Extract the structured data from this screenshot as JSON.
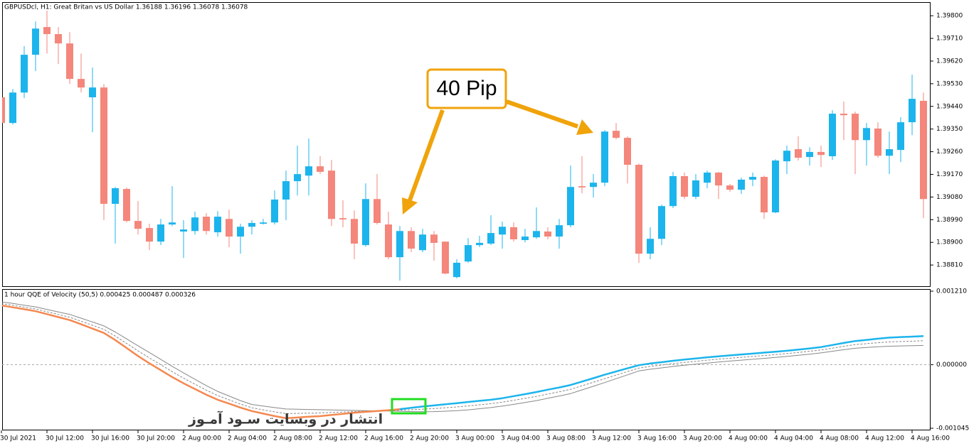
{
  "chart_data": [
    {
      "type": "candlestick",
      "title": "GBPUSDcl, H1:  Great Britan vs US Dollar  1.36188 1.36196 1.36078 1.36078",
      "annotation": "40 Pip",
      "watermark": "انتشار در وبسایت  سـود آمـوز",
      "up_color": "#1cb4ec",
      "down_color": "#f4867b",
      "grid": false,
      "categories": [
        "30 Jul 2021",
        null,
        null,
        null,
        "30 Jul 12:00",
        null,
        null,
        null,
        "30 Jul 16:00",
        null,
        null,
        null,
        "30 Jul 20:00",
        null,
        null,
        null,
        "2 Aug 00:00",
        null,
        null,
        null,
        "2 Aug 04:00",
        null,
        null,
        null,
        "2 Aug 08:00",
        null,
        null,
        null,
        "2 Aug 12:00",
        null,
        null,
        null,
        "2 Aug 16:00",
        null,
        null,
        null,
        "2 Aug 20:00",
        null,
        null,
        null,
        "3 Aug 00:00",
        null,
        null,
        null,
        "3 Aug 04:00",
        null,
        null,
        null,
        "3 Aug 08:00",
        null,
        null,
        null,
        "3 Aug 12:00",
        null,
        null,
        null,
        "3 Aug 16:00",
        null,
        null,
        null,
        "3 Aug 20:00",
        null,
        null,
        null,
        "4 Aug 00:00",
        null,
        null,
        null,
        "4 Aug 04:00",
        null,
        null,
        null,
        "4 Aug 08:00",
        null,
        null,
        null,
        "4 Aug 12:00",
        null,
        null,
        null,
        "4 Aug 16:00",
        null
      ],
      "open": [
        1.39476,
        1.39374,
        1.39495,
        1.39645,
        1.39755,
        1.39727,
        1.3969,
        1.39549,
        1.39476,
        1.39515,
        1.39053,
        1.39112,
        1.38985,
        1.38957,
        1.38903,
        1.38971,
        1.38943,
        1.38945,
        1.39002,
        1.3894,
        1.38993,
        1.38923,
        1.38962,
        1.38974,
        1.38979,
        1.3907,
        1.39143,
        1.39165,
        1.39202,
        1.39185,
        1.38996,
        1.38993,
        1.38889,
        1.39072,
        1.38971,
        1.38841,
        1.38945,
        1.38869,
        1.38931,
        1.38903,
        1.38762,
        1.38824,
        1.38889,
        1.38895,
        1.38931,
        1.3896,
        1.38909,
        1.3892,
        1.38943,
        1.38923,
        1.38968,
        1.39123,
        1.3912,
        1.39137,
        1.39343,
        1.39315,
        1.39208,
        1.38855,
        1.38914,
        1.39044,
        1.39163,
        1.39081,
        1.39137,
        1.39177,
        1.39126,
        1.39109,
        1.39149,
        1.3916,
        1.39019,
        1.39222,
        1.3927,
        1.39239,
        1.39259,
        1.39242,
        1.39411,
        1.39411,
        1.39306,
        1.39352,
        1.39244,
        1.39267,
        1.39377,
        1.39462
      ],
      "high": [
        1.39476,
        1.39509,
        1.39679,
        1.39777,
        1.3982,
        1.39755,
        1.39735,
        1.3965,
        1.39594,
        1.39529,
        1.3912,
        1.39118,
        1.39064,
        1.38974,
        1.38993,
        1.39123,
        1.38988,
        1.39022,
        1.39016,
        1.39024,
        1.3903,
        1.38974,
        1.38988,
        1.38993,
        1.39106,
        1.39185,
        1.39284,
        1.39312,
        1.39242,
        1.39227,
        1.39067,
        1.39027,
        1.39134,
        1.39171,
        1.39022,
        1.38965,
        1.3896,
        1.38954,
        1.38945,
        1.38903,
        1.38833,
        1.38917,
        1.38926,
        1.39008,
        1.38982,
        1.38979,
        1.38954,
        1.39039,
        1.3896,
        1.38993,
        1.39205,
        1.39242,
        1.39171,
        1.39346,
        1.39374,
        1.39321,
        1.39213,
        1.3896,
        1.3905,
        1.3918,
        1.39177,
        1.39171,
        1.39185,
        1.3918,
        1.39132,
        1.39157,
        1.39177,
        1.39165,
        1.3923,
        1.39284,
        1.39321,
        1.39278,
        1.39284,
        1.39425,
        1.39459,
        1.39419,
        1.39374,
        1.39377,
        1.3934,
        1.39397,
        1.39566,
        1.39495
      ],
      "low": [
        1.39374,
        1.39368,
        1.39473,
        1.3958,
        1.3965,
        1.39608,
        1.39529,
        1.39495,
        1.39337,
        1.38988,
        1.38895,
        1.38979,
        1.38931,
        1.38869,
        1.38889,
        1.38965,
        1.38838,
        1.38931,
        1.38931,
        1.38923,
        1.38881,
        1.38855,
        1.38931,
        1.38971,
        1.38971,
        1.38988,
        1.39086,
        1.39086,
        1.39171,
        1.38965,
        1.3896,
        1.38833,
        1.38883,
        1.38971,
        1.38833,
        1.38748,
        1.38861,
        1.38861,
        1.38827,
        1.38773,
        1.38757,
        1.38819,
        1.38881,
        1.38889,
        1.38875,
        1.38903,
        1.389,
        1.38914,
        1.38912,
        1.38875,
        1.3896,
        1.39095,
        1.39078,
        1.39123,
        1.39309,
        1.39134,
        1.38819,
        1.38833,
        1.38889,
        1.39036,
        1.39072,
        1.39072,
        1.39115,
        1.39072,
        1.39101,
        1.39092,
        1.39123,
        1.38993,
        1.39016,
        1.39171,
        1.39225,
        1.39205,
        1.39199,
        1.39227,
        1.39306,
        1.39171,
        1.39205,
        1.39236,
        1.39171,
        1.39219,
        1.39326,
        1.38996
      ],
      "close": [
        1.39374,
        1.39495,
        1.39645,
        1.39749,
        1.39727,
        1.3969,
        1.39549,
        1.39515,
        1.39515,
        1.39053,
        1.39115,
        1.38985,
        1.38954,
        1.38903,
        1.38971,
        1.38979,
        1.38951,
        1.38999,
        1.38945,
        1.39002,
        1.38923,
        1.38962,
        1.38977,
        1.38979,
        1.3907,
        1.39143,
        1.39171,
        1.39202,
        1.3918,
        1.38993,
        1.38991,
        1.38895,
        1.39072,
        1.38977,
        1.38841,
        1.38945,
        1.38875,
        1.38931,
        1.38898,
        1.38776,
        1.38819,
        1.38889,
        1.38898,
        1.38937,
        1.38962,
        1.38912,
        1.38923,
        1.38945,
        1.38923,
        1.38968,
        1.3912,
        1.39118,
        1.39137,
        1.3934,
        1.39315,
        1.39208,
        1.38855,
        1.38914,
        1.39044,
        1.39163,
        1.39081,
        1.39146,
        1.39177,
        1.39126,
        1.39109,
        1.39149,
        1.3916,
        1.39019,
        1.39225,
        1.39264,
        1.39236,
        1.39259,
        1.39247,
        1.39411,
        1.39405,
        1.39306,
        1.39354,
        1.39244,
        1.3927,
        1.39377,
        1.3947,
        1.39072
      ],
      "ylim": [
        1.38723,
        1.39854
      ],
      "yticks": [
        {
          "value": 1.3881,
          "label": "1.38810"
        },
        {
          "value": 1.389,
          "label": "1.38900"
        },
        {
          "value": 1.3899,
          "label": "1.38990"
        },
        {
          "value": 1.3908,
          "label": "1.39080"
        },
        {
          "value": 1.3917,
          "label": "1.39170"
        },
        {
          "value": 1.3926,
          "label": "1.39260"
        },
        {
          "value": 1.3935,
          "label": "1.39350"
        },
        {
          "value": 1.3944,
          "label": "1.39440"
        },
        {
          "value": 1.3953,
          "label": "1.39530"
        },
        {
          "value": 1.3962,
          "label": "1.39620"
        },
        {
          "value": 1.3971,
          "label": "1.39710"
        },
        {
          "value": 1.398,
          "label": "1.39800"
        }
      ]
    },
    {
      "type": "line",
      "title": "1 hour QQE of Velocity (50,5) 0.000425 0.000487 0.000326",
      "grid": false,
      "hline": 0,
      "ylim": [
        -0.00108,
        0.001245
      ],
      "yticks": [
        {
          "value": -0.001045,
          "label": "-0.001045"
        },
        {
          "value": 0,
          "label": "0.000000"
        },
        {
          "value": 0.00121,
          "label": "0.001210"
        }
      ],
      "series": [
        {
          "color": "#888888",
          "style": "thin",
          "values": [
            0.001034,
            0.001008,
            0.00098,
            0.000952,
            0.00091,
            0.000869,
            0.000827,
            0.000766,
            0.000703,
            0.000639,
            0.000538,
            0.000425,
            0.000312,
            0.0002,
            8.7e-05,
            -2.6e-05,
            -0.000135,
            -0.00024,
            -0.000345,
            -0.000439,
            -0.000515,
            -0.00059,
            -0.000653,
            -0.000679,
            -0.000705,
            -0.000728,
            -0.000733,
            -0.000737,
            -0.00074,
            -0.000744,
            -0.000747,
            -0.000752,
            -0.000755,
            -0.000759,
            -0.000762,
            -0.000766,
            -0.000771,
            -0.000774,
            -0.000771,
            -0.000764,
            -0.000755,
            -0.000742,
            -0.000724,
            -0.000705,
            -0.000681,
            -0.000652,
            -0.000621,
            -0.00059,
            -0.000552,
            -0.000515,
            -0.000475,
            -0.000414,
            -0.000354,
            -0.000294,
            -0.00023,
            -0.000166,
            -0.000102,
            -7.4e-05,
            -5.2e-05,
            -2.9e-05,
            -9e-06,
            9e-06,
            2.8e-05,
            4.5e-05,
            6e-05,
            7.5e-05,
            8.9e-05,
            0.000105,
            0.00012,
            0.000136,
            0.000155,
            0.000174,
            0.000195,
            0.000221,
            0.000247,
            0.000271,
            0.000283,
            0.000295,
            0.000305,
            0.000309,
            0.000314,
            0.000317
          ]
        },
        {
          "color": "#888888",
          "style": "dashed",
          "values": [
            0.001005,
            0.000977,
            0.000947,
            0.000917,
            0.000871,
            0.000827,
            0.000781,
            0.000716,
            0.000649,
            0.000581,
            0.000472,
            0.00035,
            0.000228,
            0.000112,
            -1e-06,
            -0.000114,
            -0.00022,
            -0.00032,
            -0.000419,
            -0.000508,
            -0.000578,
            -0.000648,
            -0.000708,
            -0.000742,
            -0.000775,
            -0.000804,
            -0.000801,
            -0.000797,
            -0.000793,
            -0.000786,
            -0.000778,
            -0.000771,
            -0.000765,
            -0.00076,
            -0.000755,
            -0.000749,
            -0.000741,
            -0.000731,
            -0.000721,
            -0.000708,
            -0.000694,
            -0.000678,
            -0.000659,
            -0.000641,
            -0.000616,
            -0.000585,
            -0.000553,
            -0.00052,
            -0.000482,
            -0.000445,
            -0.000405,
            -0.000346,
            -0.000288,
            -0.000229,
            -0.000171,
            -0.000113,
            -5.5e-05,
            -2.7e-05,
            -5e-06,
            1.8e-05,
            3.8e-05,
            5.6e-05,
            7.5e-05,
            9.2e-05,
            0.000107,
            0.000122,
            0.000136,
            0.000152,
            0.000167,
            0.000183,
            0.000202,
            0.000221,
            0.000243,
            0.000273,
            0.000303,
            0.000331,
            0.000346,
            0.000362,
            0.000376,
            0.000382,
            0.000388,
            0.000394
          ]
        },
        {
          "color": "#f4884f",
          "style": "thick",
          "values": [
            0.000975,
            0.000945,
            0.000913,
            0.000881,
            0.000832,
            0.000784,
            0.000734,
            0.000666,
            0.000594,
            0.000523,
            0.000406,
            0.000275,
            0.000143,
            2.3e-05,
            -8.9e-05,
            -0.000202,
            -0.000305,
            -0.000399,
            -0.000493,
            -0.000576,
            -0.00064,
            -0.000705,
            -0.000762,
            -0.000804,
            -0.000845,
            -0.00088,
            -0.000868,
            -0.000856,
            -0.000846,
            -0.000827,
            -0.000808,
            -0.000789,
            -0.000775,
            -0.000761,
            -0.000748,
            -0.000731,
            null,
            null,
            null,
            null,
            null,
            null,
            null,
            null,
            null,
            null,
            null,
            null,
            null,
            null,
            null,
            null,
            null,
            null,
            null,
            null,
            null,
            null,
            null,
            null,
            null,
            null,
            null,
            null,
            null,
            null,
            null,
            null,
            null,
            null,
            null,
            null,
            null,
            null,
            null,
            null,
            null,
            null,
            null,
            null,
            null,
            null
          ]
        },
        {
          "color": "#1cb4ec",
          "style": "thick",
          "values": [
            null,
            null,
            null,
            null,
            null,
            null,
            null,
            null,
            null,
            null,
            null,
            null,
            null,
            null,
            null,
            null,
            null,
            null,
            null,
            null,
            null,
            null,
            null,
            null,
            null,
            null,
            null,
            null,
            null,
            null,
            null,
            null,
            null,
            null,
            null,
            -0.000731,
            -0.00071,
            -0.000688,
            -0.00067,
            -0.000651,
            -0.000632,
            -0.000613,
            -0.000594,
            -0.000576,
            -0.000551,
            -0.000517,
            -0.000484,
            -0.000449,
            -0.000411,
            -0.000374,
            -0.000334,
            -0.000277,
            -0.000221,
            -0.000164,
            -0.000112,
            -5.9e-05,
            -7e-06,
            2e-05,
            4.2e-05,
            6.5e-05,
            8.5e-05,
            0.000103,
            0.000122,
            0.000139,
            0.000154,
            0.000169,
            0.000183,
            0.000199,
            0.000214,
            0.00023,
            0.000249,
            0.000268,
            0.00029,
            0.000324,
            0.000358,
            0.00039,
            0.000409,
            0.000428,
            0.000446,
            0.000455,
            0.000462,
            0.00047
          ]
        }
      ]
    }
  ]
}
